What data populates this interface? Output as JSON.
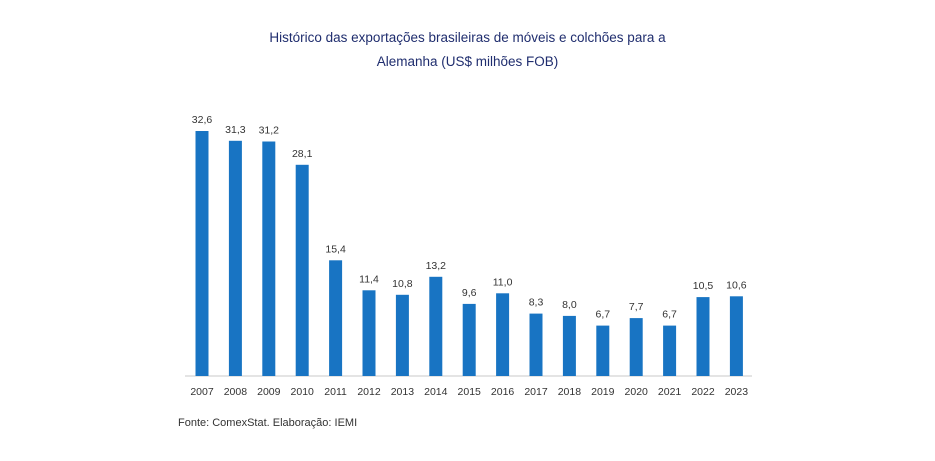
{
  "title_line1": "Histórico das exportações brasileiras de móveis e colchões para a",
  "title_line2": "Alemanha (US$ milhões FOB)",
  "source": "Fonte: ComexStat. Elaboração: IEMI",
  "colors": {
    "bar": "#1874c3",
    "title": "#1f2d6e",
    "axis": "#c8c8c8",
    "text": "#333333"
  },
  "chart_data": {
    "type": "bar",
    "title": "Histórico das exportações brasileiras de móveis e colchões para a Alemanha (US$ milhões FOB)",
    "categories": [
      "2007",
      "2008",
      "2009",
      "2010",
      "2011",
      "2012",
      "2013",
      "2014",
      "2015",
      "2016",
      "2017",
      "2018",
      "2019",
      "2020",
      "2021",
      "2022",
      "2023"
    ],
    "values": [
      32.6,
      31.3,
      31.2,
      28.1,
      15.4,
      11.4,
      10.8,
      13.2,
      9.6,
      11.0,
      8.3,
      8.0,
      6.7,
      7.7,
      6.7,
      10.5,
      10.6
    ],
    "data_labels": [
      "32,6",
      "31,3",
      "31,2",
      "28,1",
      "15,4",
      "11,4",
      "10,8",
      "13,2",
      "9,6",
      "11,0",
      "8,3",
      "8,0",
      "6,7",
      "7,7",
      "6,7",
      "10,5",
      "10,6"
    ],
    "xlabel": "",
    "ylabel": "",
    "ylim": [
      0,
      32.6
    ],
    "grid": false,
    "legend": "none"
  }
}
